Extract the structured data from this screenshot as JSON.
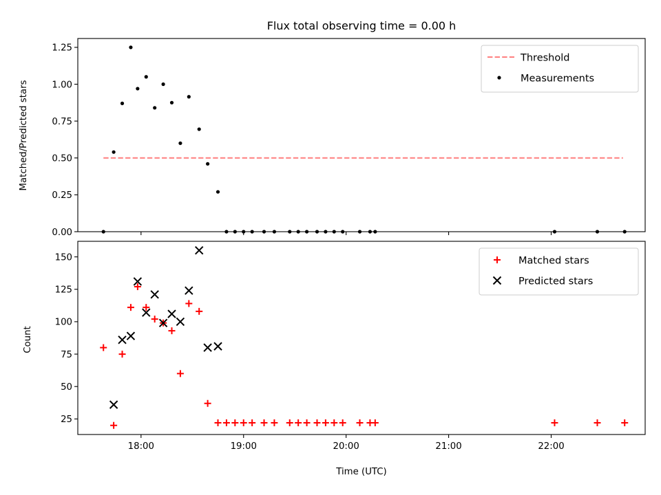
{
  "chart_data": [
    {
      "type": "scatter",
      "title": "Flux total observing time = 0.00 h",
      "xlabel": "",
      "ylabel": "Matched/Predicted stars",
      "ylim": [
        0,
        1.31
      ],
      "yticks": [
        "0.00",
        "0.25",
        "0.50",
        "0.75",
        "1.00",
        "1.25"
      ],
      "ytick_values": [
        0,
        0.25,
        0.5,
        0.75,
        1.0,
        1.25
      ],
      "xlim": [
        "17:23",
        "22:55"
      ],
      "xtick_values": [
        "18:00",
        "19:00",
        "20:00",
        "21:00",
        "22:00"
      ],
      "xtick_labels_shown": false,
      "grid": false,
      "legend": {
        "placement": "top-right",
        "entries": [
          {
            "label": "Threshold",
            "type": "dashed-line",
            "color": "#ff7f7f"
          },
          {
            "label": "Measurements",
            "type": "dot",
            "color": "#000000"
          }
        ]
      },
      "series": [
        {
          "name": "Threshold",
          "kind": "line",
          "color": "#ff7f7f",
          "x": [
            "17:38",
            "22:42"
          ],
          "y": [
            0.5,
            0.5
          ]
        },
        {
          "name": "Measurements",
          "kind": "dot",
          "color": "#000000",
          "x": [
            "17:38",
            "17:44",
            "17:49",
            "17:54",
            "17:58",
            "18:03",
            "18:08",
            "18:13",
            "18:18",
            "18:23",
            "18:28",
            "18:34",
            "18:39",
            "18:45",
            "18:50",
            "18:55",
            "19:00",
            "19:05",
            "19:12",
            "19:18",
            "19:27",
            "19:32",
            "19:37",
            "19:43",
            "19:48",
            "19:53",
            "19:58",
            "20:08",
            "20:14",
            "20:17",
            "22:02",
            "22:27",
            "22:43"
          ],
          "y": [
            0.0,
            0.54,
            0.87,
            1.25,
            0.97,
            1.05,
            0.84,
            1.0,
            0.875,
            0.6,
            0.915,
            0.695,
            0.46,
            0.27,
            0.0,
            0.0,
            0.0,
            0.0,
            0.0,
            0.0,
            0.0,
            0.0,
            0.0,
            0.0,
            0.0,
            0.0,
            0.0,
            0.0,
            0.0,
            0.0,
            0.0,
            0.0,
            0.0
          ]
        }
      ]
    },
    {
      "type": "scatter",
      "title": "",
      "xlabel": "Time (UTC)",
      "ylabel": "Count",
      "ylim": [
        13,
        162
      ],
      "yticks": [
        "25",
        "50",
        "75",
        "100",
        "125",
        "150"
      ],
      "ytick_values": [
        25,
        50,
        75,
        100,
        125,
        150
      ],
      "xlim": [
        "17:23",
        "22:55"
      ],
      "xticks": [
        "18:00",
        "19:00",
        "20:00",
        "21:00",
        "22:00"
      ],
      "grid": false,
      "legend": {
        "placement": "top-right",
        "entries": [
          {
            "label": "Matched stars",
            "type": "plus",
            "color": "#ff0000"
          },
          {
            "label": "Predicted stars",
            "type": "cross",
            "color": "#000000"
          }
        ]
      },
      "series": [
        {
          "name": "Matched stars",
          "kind": "plus",
          "color": "#ff0000",
          "x": [
            "17:38",
            "17:44",
            "17:49",
            "17:54",
            "17:58",
            "18:03",
            "18:08",
            "18:13",
            "18:18",
            "18:23",
            "18:28",
            "18:34",
            "18:39",
            "18:45",
            "18:50",
            "18:55",
            "19:00",
            "19:05",
            "19:12",
            "19:18",
            "19:27",
            "19:32",
            "19:37",
            "19:43",
            "19:48",
            "19:53",
            "19:58",
            "20:08",
            "20:14",
            "20:17",
            "22:02",
            "22:27",
            "22:43"
          ],
          "y": [
            80,
            20,
            75,
            111,
            127,
            111,
            102,
            99,
            93,
            60,
            114,
            108,
            37,
            22,
            22,
            22,
            22,
            22,
            22,
            22,
            22,
            22,
            22,
            22,
            22,
            22,
            22,
            22,
            22,
            22,
            22,
            22,
            22
          ]
        },
        {
          "name": "Predicted stars",
          "kind": "cross",
          "color": "#000000",
          "x": [
            "17:44",
            "17:49",
            "17:54",
            "17:58",
            "18:03",
            "18:08",
            "18:13",
            "18:18",
            "18:23",
            "18:28",
            "18:34",
            "18:39",
            "18:45"
          ],
          "y": [
            36,
            86,
            89,
            131,
            107,
            121,
            99,
            106,
            100,
            124,
            155,
            80,
            81
          ]
        }
      ]
    }
  ]
}
